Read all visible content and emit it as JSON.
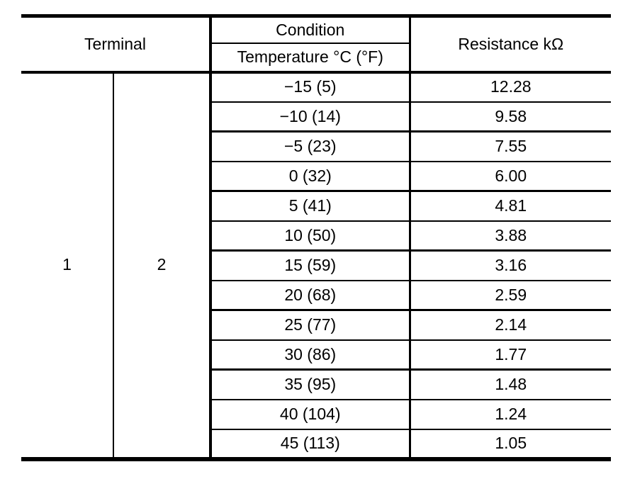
{
  "table": {
    "headers": {
      "terminal": "Terminal",
      "condition": "Condition",
      "temperature": "Temperature °C (°F)",
      "resistance": "Resistance kΩ"
    },
    "terminal_columns": [
      "1",
      "2"
    ],
    "rows": [
      {
        "temperature": "−15 (5)",
        "resistance": "12.28"
      },
      {
        "temperature": "−10 (14)",
        "resistance": "9.58"
      },
      {
        "temperature": "−5 (23)",
        "resistance": "7.55"
      },
      {
        "temperature": "0 (32)",
        "resistance": "6.00"
      },
      {
        "temperature": "5 (41)",
        "resistance": "4.81"
      },
      {
        "temperature": "10 (50)",
        "resistance": "3.88"
      },
      {
        "temperature": "15 (59)",
        "resistance": "3.16"
      },
      {
        "temperature": "20 (68)",
        "resistance": "2.59"
      },
      {
        "temperature": "25 (77)",
        "resistance": "2.14"
      },
      {
        "temperature": "30 (86)",
        "resistance": "1.77"
      },
      {
        "temperature": "35 (95)",
        "resistance": "1.48"
      },
      {
        "temperature": "40 (104)",
        "resistance": "1.24"
      },
      {
        "temperature": "45 (113)",
        "resistance": "1.05"
      }
    ],
    "colors": {
      "line": "#000000",
      "text": "#000000",
      "background": "#ffffff"
    }
  }
}
